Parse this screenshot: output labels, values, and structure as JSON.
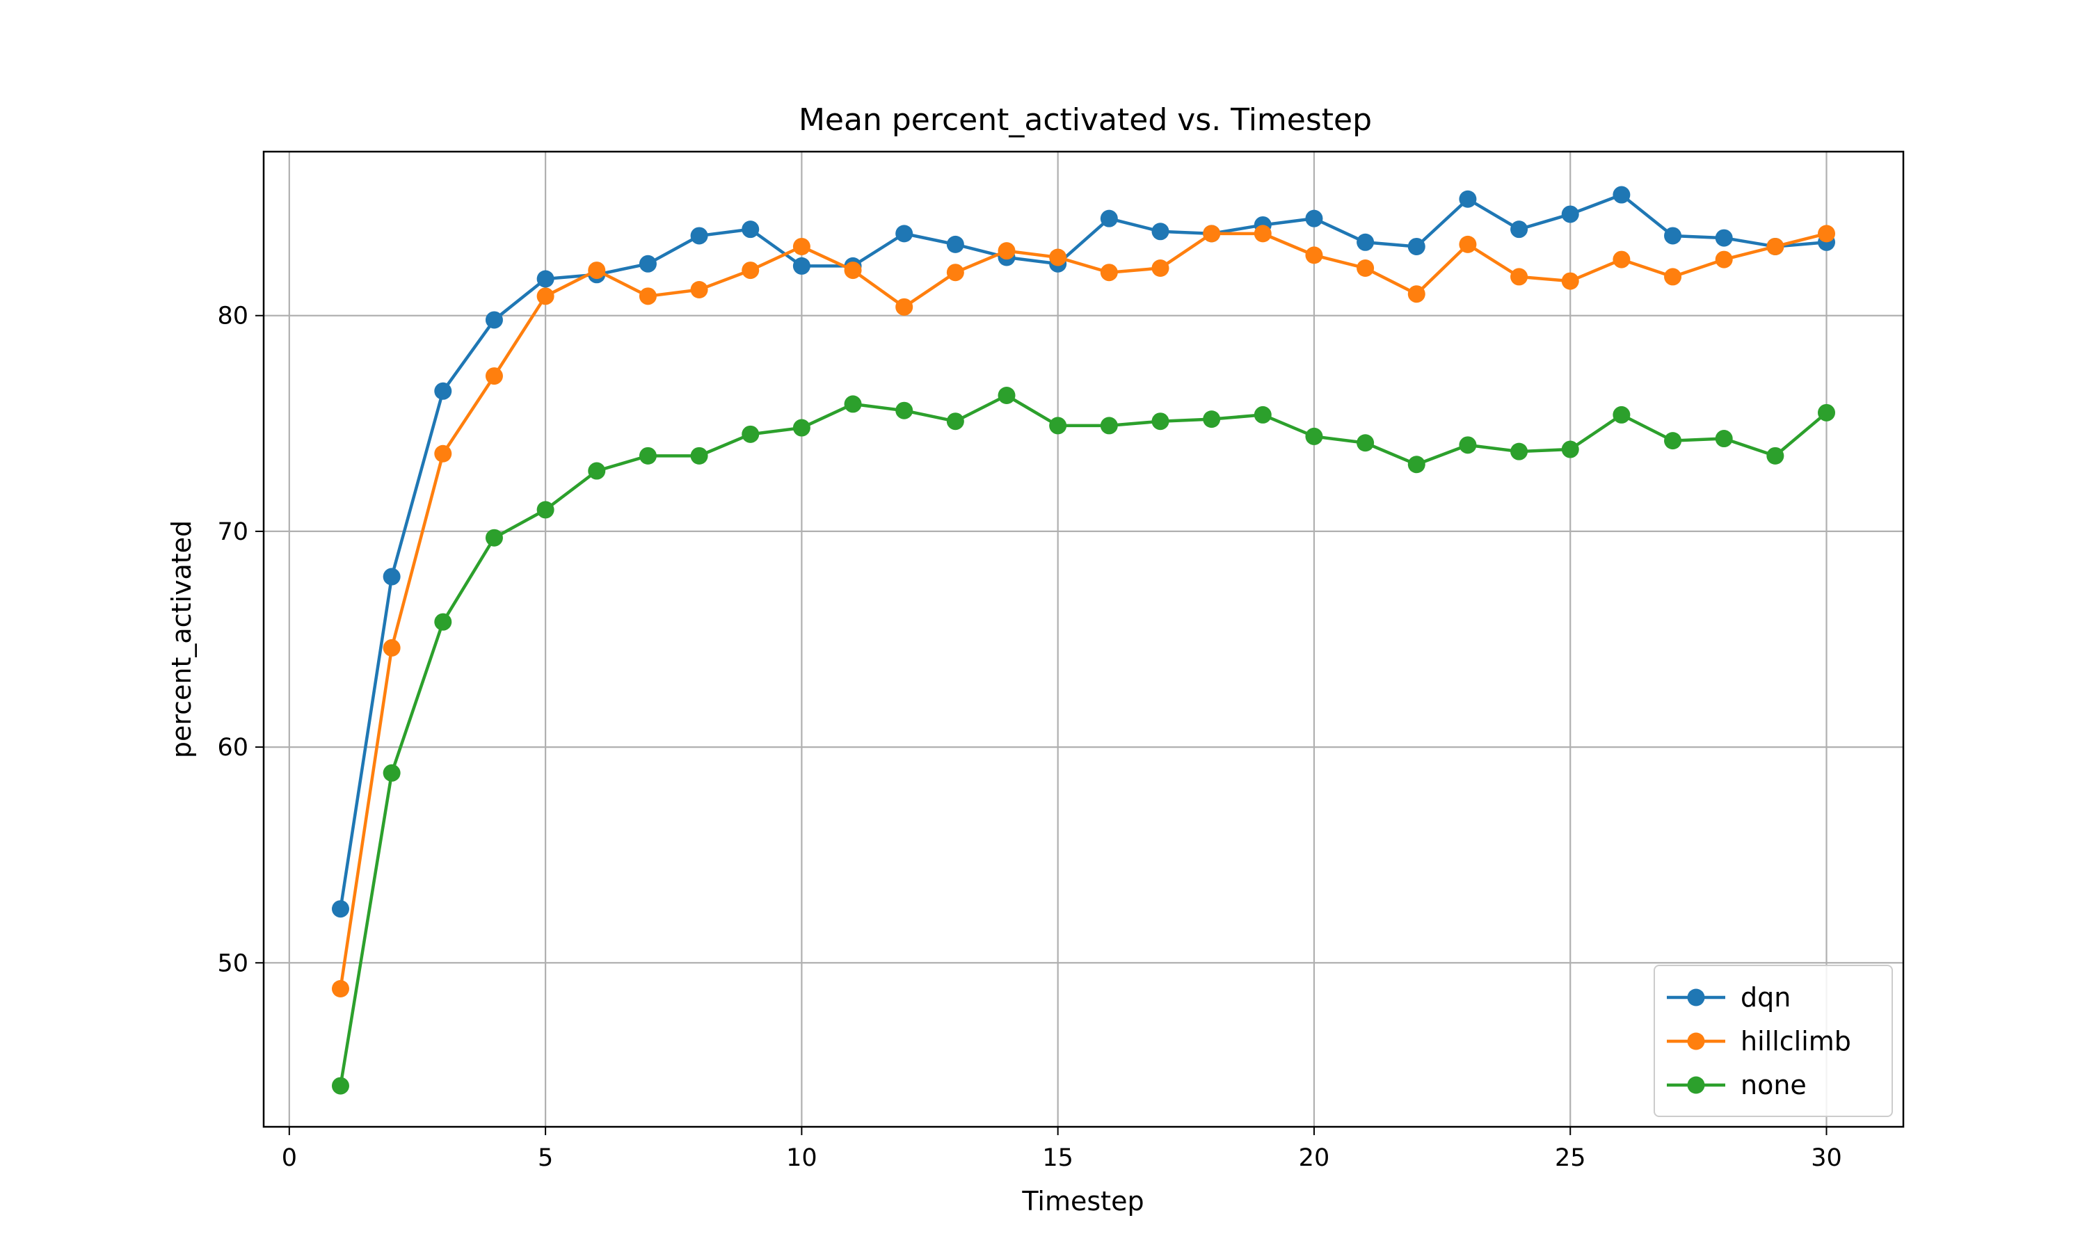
{
  "chart_data": {
    "type": "line",
    "title": "Mean percent_activated vs. Timestep",
    "xlabel": "Timestep",
    "ylabel": "percent_activated",
    "xlim": [
      -0.5,
      31.5
    ],
    "ylim": [
      42.4,
      87.6
    ],
    "xticks": [
      0,
      5,
      10,
      15,
      20,
      25,
      30
    ],
    "yticks": [
      50,
      60,
      70,
      80
    ],
    "grid": true,
    "legend_position": "lower-right",
    "x": [
      1,
      2,
      3,
      4,
      5,
      6,
      7,
      8,
      9,
      10,
      11,
      12,
      13,
      14,
      15,
      16,
      17,
      18,
      19,
      20,
      21,
      22,
      23,
      24,
      25,
      26,
      27,
      28,
      29,
      30
    ],
    "series": [
      {
        "name": "dqn",
        "color": "#1f77b4",
        "marker": "circle",
        "values": [
          52.5,
          67.9,
          76.5,
          79.8,
          81.7,
          81.9,
          82.4,
          83.7,
          84.0,
          82.3,
          82.3,
          83.8,
          83.3,
          82.7,
          82.4,
          84.5,
          83.9,
          83.8,
          84.2,
          84.5,
          83.4,
          83.2,
          85.4,
          84.0,
          84.7,
          85.6,
          83.7,
          83.6,
          83.2,
          83.4
        ]
      },
      {
        "name": "hillclimb",
        "color": "#ff7f0e",
        "marker": "circle",
        "values": [
          48.8,
          64.6,
          73.6,
          77.2,
          80.9,
          82.1,
          80.9,
          81.2,
          82.1,
          83.2,
          82.1,
          80.4,
          82.0,
          83.0,
          82.7,
          82.0,
          82.2,
          83.8,
          83.8,
          82.8,
          82.2,
          81.0,
          83.3,
          81.8,
          81.6,
          82.6,
          81.8,
          82.6,
          83.2,
          83.8
        ]
      },
      {
        "name": "none",
        "color": "#2ca02c",
        "marker": "circle",
        "values": [
          44.3,
          58.8,
          65.8,
          69.7,
          71.0,
          72.8,
          73.5,
          73.5,
          74.5,
          74.8,
          75.9,
          75.6,
          75.1,
          76.3,
          74.9,
          74.9,
          75.1,
          75.2,
          75.4,
          74.4,
          74.1,
          73.1,
          74.0,
          73.7,
          73.8,
          75.4,
          74.2,
          74.3,
          73.5,
          75.5
        ]
      }
    ]
  }
}
